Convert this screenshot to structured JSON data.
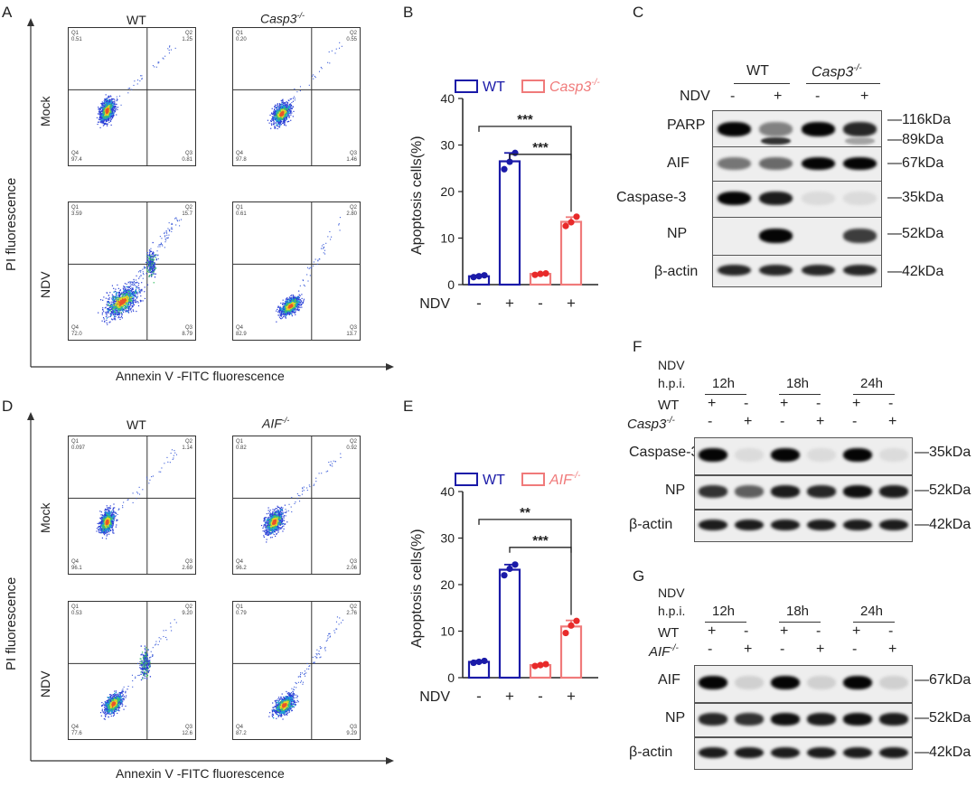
{
  "panels": {
    "A": "A",
    "B": "B",
    "C": "C",
    "D": "D",
    "E": "E",
    "F": "F",
    "G": "G"
  },
  "flow": {
    "A": {
      "ylabel": "PI fluorescence",
      "xlabel": "Annexin V -FITC fluorescence",
      "col1": "WT",
      "col2": "Casp3",
      "row1": "Mock",
      "row2": "NDV",
      "quads": [
        {
          "q1": "Q1",
          "v1": "0.51",
          "q2": "Q2",
          "v2": "1.25",
          "q4": "Q4",
          "v4": "97.4",
          "q3": "Q3",
          "v3": "0.81"
        },
        {
          "q1": "Q1",
          "v1": "0.20",
          "q2": "Q2",
          "v2": "0.55",
          "q4": "Q4",
          "v4": "97.8",
          "q3": "Q3",
          "v3": "1.46"
        },
        {
          "q1": "Q1",
          "v1": "3.59",
          "q2": "Q2",
          "v2": "15.7",
          "q4": "Q4",
          "v4": "72.0",
          "q3": "Q3",
          "v3": "8.79"
        },
        {
          "q1": "Q1",
          "v1": "0.61",
          "q2": "Q2",
          "v2": "2.80",
          "q4": "Q4",
          "v4": "82.9",
          "q3": "Q3",
          "v3": "13.7"
        }
      ]
    },
    "D": {
      "ylabel": "PI fluorescence",
      "xlabel": "Annexin V -FITC fluorescence",
      "col1": "WT",
      "col2": "AIF",
      "row1": "Mock",
      "row2": "NDV",
      "quads": [
        {
          "q1": "Q1",
          "v1": "0.097",
          "q2": "Q2",
          "v2": "1.14",
          "q4": "Q4",
          "v4": "96.1",
          "q3": "Q3",
          "v3": "2.69"
        },
        {
          "q1": "Q1",
          "v1": "0.82",
          "q2": "Q2",
          "v2": "0.92",
          "q4": "Q4",
          "v4": "96.2",
          "q3": "Q3",
          "v3": "2.06"
        },
        {
          "q1": "Q1",
          "v1": "0.53",
          "q2": "Q2",
          "v2": "9.20",
          "q4": "Q4",
          "v4": "77.6",
          "q3": "Q3",
          "v3": "12.6"
        },
        {
          "q1": "Q1",
          "v1": "0.79",
          "q2": "Q2",
          "v2": "2.76",
          "q4": "Q4",
          "v4": "87.2",
          "q3": "Q3",
          "v3": "9.29"
        }
      ]
    }
  },
  "ko_sup": "-/-",
  "chart_data": [
    {
      "type": "bar",
      "panel": "B",
      "ylabel": "Apoptosis cells(%)",
      "ylim": [
        0,
        40
      ],
      "yticks": [
        0,
        10,
        20,
        30,
        40
      ],
      "xrow_label": "NDV",
      "x_signs": [
        "-",
        "+",
        "-",
        "+"
      ],
      "legend": [
        "WT",
        "Casp3"
      ],
      "colors": [
        "#1a1aa8",
        "#f07a7a"
      ],
      "values": [
        1.8,
        26.5,
        2.3,
        13.5
      ],
      "points": [
        [
          1.6,
          1.8,
          2.0
        ],
        [
          24.8,
          26.4,
          28.3
        ],
        [
          2.1,
          2.3,
          2.4
        ],
        [
          12.6,
          13.4,
          14.6
        ]
      ],
      "errors": [
        0.2,
        1.8,
        0.15,
        1.0
      ],
      "sig": [
        "***",
        "***"
      ]
    },
    {
      "type": "bar",
      "panel": "E",
      "ylabel": "Apoptosis cells(%)",
      "ylim": [
        0,
        40
      ],
      "yticks": [
        0,
        10,
        20,
        30,
        40
      ],
      "xrow_label": "NDV",
      "x_signs": [
        "-",
        "+",
        "-",
        "+"
      ],
      "legend": [
        "WT",
        "AIF"
      ],
      "colors": [
        "#1a1aa8",
        "#f07a7a"
      ],
      "values": [
        3.4,
        23.2,
        2.7,
        11.0
      ],
      "points": [
        [
          3.2,
          3.4,
          3.6
        ],
        [
          22.0,
          23.4,
          24.3
        ],
        [
          2.5,
          2.7,
          2.9
        ],
        [
          9.6,
          11.2,
          12.2
        ]
      ],
      "errors": [
        0.25,
        1.1,
        0.2,
        1.3
      ],
      "sig": [
        "**",
        "***"
      ]
    }
  ],
  "blotC": {
    "groups": [
      "WT",
      "Casp3"
    ],
    "ndv": "NDV",
    "signs": [
      "-",
      "+",
      "-",
      "+"
    ],
    "rows": [
      {
        "name": "PARP",
        "kda": "116kDa",
        "kda2": "89kDa"
      },
      {
        "name": "AIF",
        "kda": "67kDa"
      },
      {
        "name": "Caspase-3",
        "kda": "35kDa"
      },
      {
        "name": "NP",
        "kda": "52kDa"
      },
      {
        "name": "β-actin",
        "kda": "42kDa"
      }
    ],
    "bands": [
      [
        1.0,
        0.45,
        1.0,
        0.85
      ],
      [
        0.5,
        0.55,
        1.0,
        1.0
      ],
      [
        1.0,
        0.9,
        0.05,
        0.05
      ],
      [
        0.0,
        1.0,
        0.0,
        0.75
      ],
      [
        0.85,
        0.85,
        0.85,
        0.85
      ]
    ],
    "parp_cleaved": [
      0.0,
      0.8,
      0.0,
      0.3
    ]
  },
  "blotF": {
    "ndv": "NDV",
    "hpi": "h.p.i.",
    "times": [
      "12h",
      "18h",
      "24h"
    ],
    "wt": "WT",
    "ko": "Casp3",
    "wt_signs": [
      "+",
      "-",
      "+",
      "-",
      "+",
      "-"
    ],
    "ko_signs": [
      "-",
      "+",
      "-",
      "+",
      "-",
      "+"
    ],
    "rows": [
      {
        "name": "Caspase-3",
        "kda": "35kDa"
      },
      {
        "name": "NP",
        "kda": "52kDa"
      },
      {
        "name": "β-actin",
        "kda": "42kDa"
      }
    ],
    "bands": [
      [
        1.0,
        0.05,
        1.0,
        0.05,
        1.0,
        0.05
      ],
      [
        0.8,
        0.6,
        0.9,
        0.85,
        0.95,
        0.9
      ],
      [
        0.9,
        0.9,
        0.9,
        0.9,
        0.9,
        0.9
      ]
    ]
  },
  "blotG": {
    "ndv": "NDV",
    "hpi": "h.p.i.",
    "times": [
      "12h",
      "18h",
      "24h"
    ],
    "wt": "WT",
    "ko": "AIF",
    "wt_signs": [
      "+",
      "-",
      "+",
      "-",
      "+",
      "-"
    ],
    "ko_signs": [
      "-",
      "+",
      "-",
      "+",
      "-",
      "+"
    ],
    "rows": [
      {
        "name": "AIF",
        "kda": "67kDa"
      },
      {
        "name": "NP",
        "kda": "52kDa"
      },
      {
        "name": "β-actin",
        "kda": "42kDa"
      }
    ],
    "bands": [
      [
        1.0,
        0.1,
        1.0,
        0.1,
        1.0,
        0.1
      ],
      [
        0.85,
        0.8,
        0.95,
        0.9,
        0.95,
        0.9
      ],
      [
        0.9,
        0.9,
        0.9,
        0.9,
        0.9,
        0.9
      ]
    ]
  }
}
